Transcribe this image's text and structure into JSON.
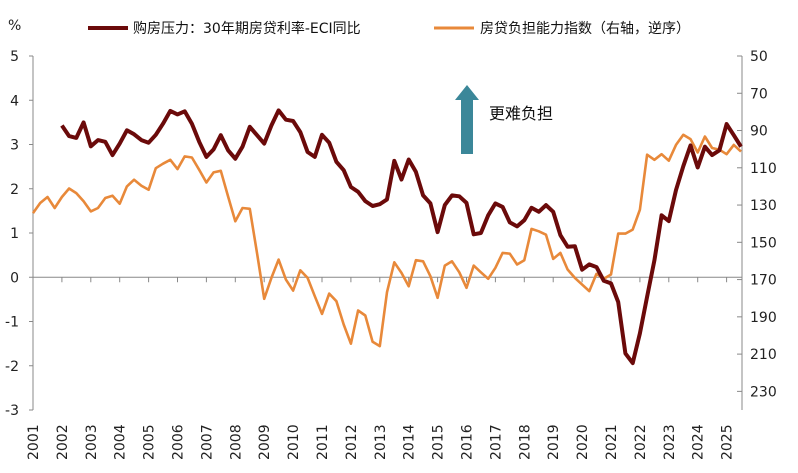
{
  "chart_data": {
    "type": "line",
    "title": "",
    "left_axis": {
      "unit_label": "%",
      "range": [
        -3,
        5
      ],
      "ticks": [
        "5",
        "4",
        "3",
        "2",
        "1",
        "0",
        "-1",
        "-2",
        "-3"
      ]
    },
    "right_axis": {
      "range": [
        50,
        240
      ],
      "reversed": true,
      "ticks": [
        "50",
        "70",
        "90",
        "110",
        "130",
        "150",
        "170",
        "190",
        "210",
        "230"
      ]
    },
    "x_axis": {
      "ticks": [
        "2001",
        "2002",
        "2003",
        "2004",
        "2005",
        "2006",
        "2007",
        "2008",
        "2009",
        "2010",
        "2011",
        "2012",
        "2013",
        "2014",
        "2015",
        "2016",
        "2017",
        "2018",
        "2019",
        "2020",
        "2021",
        "2022",
        "2023",
        "2024",
        "2025"
      ],
      "range": [
        "2001Q1",
        "2025Q3"
      ]
    },
    "legend_position": "top",
    "grid": false,
    "annotation": {
      "text": "更难负担",
      "arrow": "up-arrow",
      "arrow_color": "#3b8799"
    },
    "series": [
      {
        "name": "购房压力：30年期房贷利率-ECI同比",
        "axis": "left",
        "color": "#6b0a0a",
        "start": "2002Q1",
        "frequency": "quarterly",
        "values": [
          3.43,
          3.19,
          3.15,
          3.5,
          2.96,
          3.1,
          3.06,
          2.76,
          3.02,
          3.32,
          3.23,
          3.1,
          3.04,
          3.22,
          3.47,
          3.76,
          3.68,
          3.75,
          3.47,
          3.06,
          2.72,
          2.89,
          3.21,
          2.87,
          2.68,
          2.95,
          3.4,
          3.21,
          3.02,
          3.43,
          3.77,
          3.56,
          3.53,
          3.28,
          2.83,
          2.72,
          3.22,
          3.04,
          2.61,
          2.42,
          2.04,
          1.93,
          1.72,
          1.61,
          1.65,
          1.76,
          2.63,
          2.21,
          2.66,
          2.38,
          1.85,
          1.67,
          1.02,
          1.63,
          1.85,
          1.83,
          1.68,
          0.97,
          1.0,
          1.4,
          1.67,
          1.59,
          1.24,
          1.15,
          1.29,
          1.57,
          1.48,
          1.63,
          1.48,
          0.95,
          0.69,
          0.7,
          0.17,
          0.29,
          0.23,
          -0.08,
          -0.14,
          -0.56,
          -1.72,
          -1.94,
          -1.27,
          -0.44,
          0.38,
          1.4,
          1.27,
          1.97,
          2.51,
          2.98,
          2.48,
          2.95,
          2.76,
          2.87,
          3.46,
          3.21,
          2.95
        ]
      },
      {
        "name": "房贷负担能力指数（右轴，逆序）",
        "axis": "right",
        "color": "#e8893a",
        "start": "2001Q1",
        "frequency": "quarterly",
        "values": [
          134.3,
          128.9,
          125.7,
          131.6,
          125.7,
          121.1,
          123.6,
          128,
          133.4,
          131.6,
          126.2,
          125,
          129.3,
          120,
          116.4,
          119.6,
          121.8,
          110.2,
          107.8,
          105.7,
          110.7,
          103.9,
          104.5,
          111.1,
          117.9,
          112.5,
          111.6,
          125.4,
          138.7,
          131.6,
          132,
          155.7,
          180.3,
          169.1,
          159.3,
          170,
          175.9,
          165,
          169.1,
          178.9,
          188.4,
          177.5,
          181.6,
          194.1,
          204.4,
          186.6,
          189.3,
          203.4,
          205.7,
          176.8,
          160.7,
          166.4,
          173.6,
          159.6,
          160.2,
          168.2,
          179.8,
          162.5,
          160.2,
          166.1,
          174.4,
          162.5,
          166.1,
          169.6,
          163.7,
          155.7,
          156.1,
          161.9,
          159.6,
          142.8,
          144.1,
          145.9,
          158.9,
          155.7,
          164.6,
          169.1,
          172.7,
          176.2,
          166.9,
          169.6,
          167.3,
          145.3,
          145.3,
          143.2,
          132.5,
          103,
          105.7,
          102.7,
          106.2,
          97.7,
          92.3,
          94.6,
          101.8,
          93.2,
          99.4,
          100.3,
          102.7,
          97.7,
          101.3
        ]
      }
    ]
  }
}
